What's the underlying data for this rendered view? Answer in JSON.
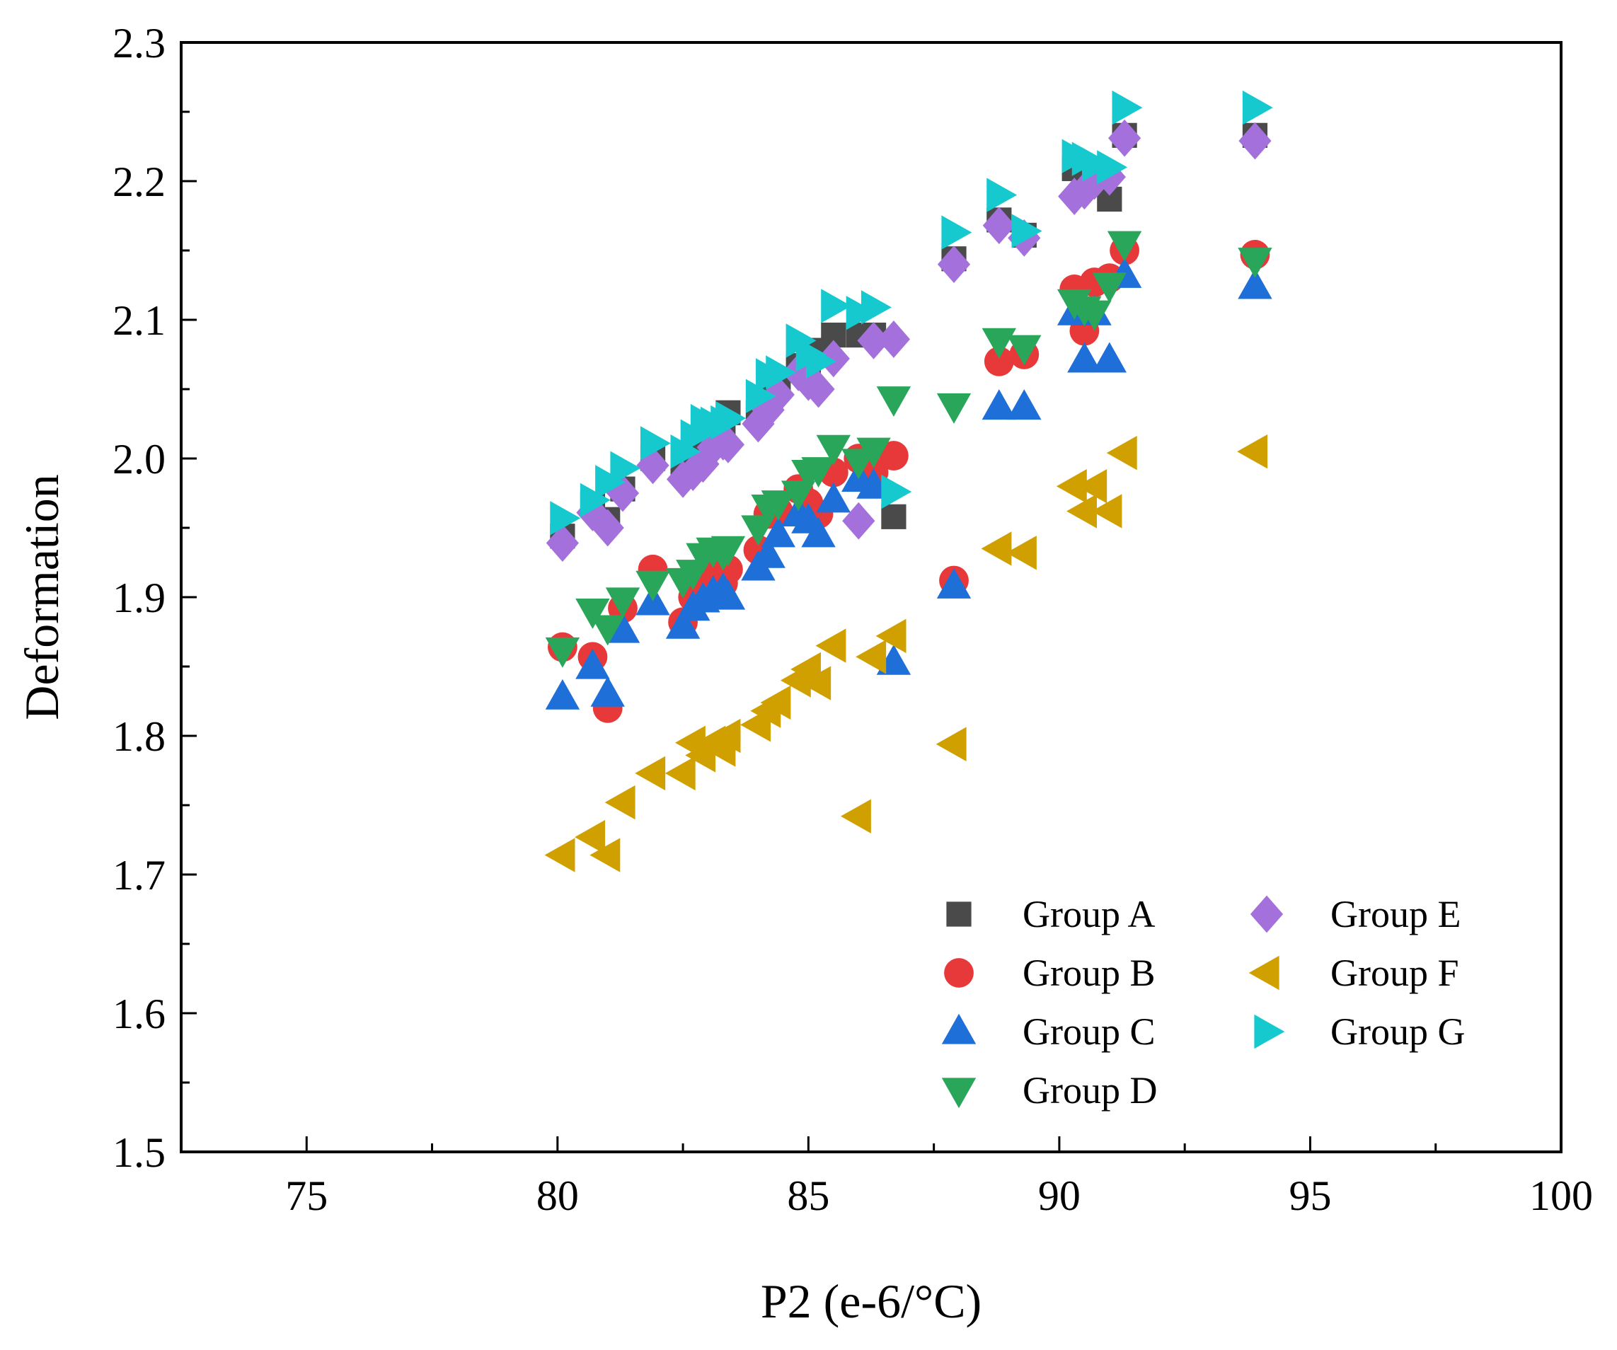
{
  "chart_data": {
    "type": "scatter",
    "title": "",
    "xlabel": "P2 (e-6/°C)",
    "ylabel": "Deformation",
    "xlim": [
      72.5,
      100
    ],
    "ylim": [
      1.5,
      2.3
    ],
    "xticks": [
      75,
      80,
      85,
      90,
      95,
      100
    ],
    "xtick_labels": [
      "75",
      "80",
      "85",
      "90",
      "95",
      "100"
    ],
    "yticks": [
      1.5,
      1.6,
      1.7,
      1.8,
      1.9,
      2.0,
      2.1,
      2.2,
      2.3
    ],
    "ytick_labels": [
      "1.5",
      "1.6",
      "1.7",
      "1.8",
      "1.9",
      "2.0",
      "2.1",
      "2.2",
      "2.3"
    ],
    "grid": false,
    "legend_position": "bottom-right",
    "x": [
      80.1,
      80.7,
      81.0,
      81.3,
      81.9,
      82.5,
      82.7,
      82.9,
      83.1,
      83.3,
      83.4,
      84.0,
      84.2,
      84.4,
      84.8,
      85.0,
      85.2,
      85.5,
      86.0,
      86.3,
      86.7,
      87.9,
      88.8,
      89.3,
      90.3,
      90.5,
      90.7,
      91.0,
      91.3,
      93.9
    ],
    "series": [
      {
        "name": "Group A",
        "marker": "square",
        "color": "#4a4a4a",
        "values": [
          1.944,
          1.967,
          1.956,
          1.978,
          2.0,
          1.993,
          2.0,
          2.011,
          2.022,
          2.022,
          2.033,
          2.033,
          2.044,
          2.056,
          2.067,
          2.067,
          2.078,
          2.089,
          2.089,
          2.089,
          1.958,
          2.144,
          2.172,
          2.161,
          2.209,
          2.2,
          2.209,
          2.187,
          2.233,
          2.233
        ]
      },
      {
        "name": "Group B",
        "marker": "circle",
        "color": "#e8393a",
        "values": [
          1.864,
          1.857,
          1.82,
          1.892,
          1.92,
          1.882,
          1.9,
          1.918,
          1.914,
          1.91,
          1.92,
          1.934,
          1.96,
          1.962,
          1.978,
          1.968,
          1.96,
          1.99,
          2.0,
          1.99,
          2.002,
          1.912,
          2.07,
          2.075,
          2.122,
          2.092,
          2.127,
          2.13,
          2.15,
          2.147
        ]
      },
      {
        "name": "Group C",
        "marker": "triangle-up",
        "color": "#1f6fd8",
        "values": [
          1.828,
          1.85,
          1.83,
          1.876,
          1.896,
          1.879,
          1.892,
          1.898,
          1.903,
          1.905,
          1.9,
          1.921,
          1.93,
          1.945,
          1.96,
          1.955,
          1.945,
          1.97,
          1.985,
          1.98,
          1.853,
          1.908,
          2.037,
          2.037,
          2.105,
          2.071,
          2.105,
          2.071,
          2.132,
          2.124
        ]
      },
      {
        "name": "Group D",
        "marker": "triangle-down",
        "color": "#2aa65a",
        "values": [
          1.862,
          1.89,
          1.878,
          1.898,
          1.91,
          1.912,
          1.918,
          1.93,
          1.934,
          1.932,
          1.935,
          1.95,
          1.965,
          1.968,
          1.975,
          1.99,
          1.992,
          2.008,
          1.998,
          2.006,
          2.043,
          2.038,
          2.085,
          2.08,
          2.113,
          2.108,
          2.105,
          2.125,
          2.155,
          2.143
        ]
      },
      {
        "name": "Group E",
        "marker": "diamond",
        "color": "#a471dc",
        "values": [
          1.939,
          1.961,
          1.95,
          1.975,
          1.995,
          1.985,
          1.99,
          1.996,
          2.008,
          2.012,
          2.01,
          2.025,
          2.035,
          2.046,
          2.062,
          2.055,
          2.05,
          2.072,
          1.955,
          2.085,
          2.086,
          2.14,
          2.168,
          2.159,
          2.189,
          2.193,
          2.2,
          2.203,
          2.231,
          2.229
        ]
      },
      {
        "name": "Group F",
        "marker": "triangle-left",
        "color": "#d0a000",
        "values": [
          1.714,
          1.727,
          1.714,
          1.752,
          1.773,
          1.773,
          1.795,
          1.786,
          1.795,
          1.79,
          1.8,
          1.808,
          1.818,
          1.824,
          1.84,
          1.848,
          1.838,
          1.865,
          1.742,
          1.857,
          1.872,
          1.794,
          1.935,
          1.932,
          1.98,
          1.962,
          1.98,
          1.962,
          2.004,
          2.005
        ]
      },
      {
        "name": "Group G",
        "marker": "triangle-right",
        "color": "#16c9cf",
        "values": [
          1.957,
          1.97,
          1.983,
          1.993,
          2.011,
          2.005,
          2.016,
          2.027,
          2.025,
          2.026,
          2.029,
          2.045,
          2.06,
          2.062,
          2.085,
          2.075,
          2.07,
          2.11,
          2.105,
          2.109,
          1.976,
          2.163,
          2.19,
          2.164,
          2.218,
          2.216,
          2.212,
          2.21,
          2.253,
          2.253
        ]
      }
    ]
  }
}
